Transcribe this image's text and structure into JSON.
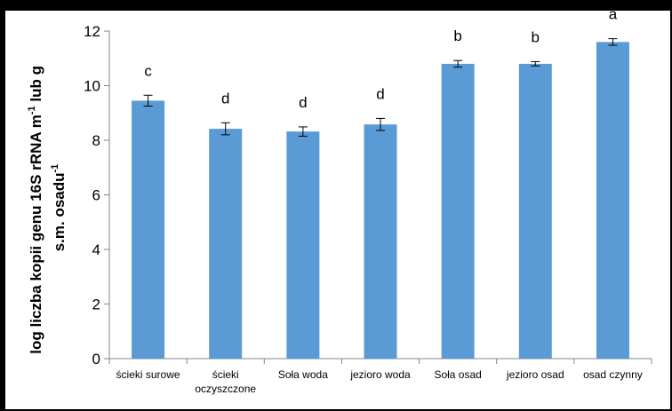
{
  "chart_data": {
    "type": "bar",
    "title": "",
    "xlabel": "",
    "ylabel": {
      "line1": {
        "before_sup1": "log liczba kopii genu 16S rRNA m",
        "sup1": "-1",
        "after_sup1": " lub g"
      },
      "line2": {
        "before_sup": "s.m. osadu",
        "sup": "-1"
      }
    },
    "ylim": [
      0,
      12
    ],
    "yticks": [
      "0",
      "2",
      "4",
      "6",
      "8",
      "10",
      "12"
    ],
    "grid": false,
    "categories": [
      [
        "ścieki surowe"
      ],
      [
        "ścieki",
        "oczyszczone"
      ],
      [
        "Soła woda"
      ],
      [
        "jezioro woda"
      ],
      [
        "Soła osad"
      ],
      [
        "jezioro osad"
      ],
      [
        "osad czynny"
      ]
    ],
    "values": [
      9.45,
      8.42,
      8.32,
      8.58,
      10.8,
      10.8,
      11.6
    ],
    "errors": [
      0.2,
      0.22,
      0.17,
      0.22,
      0.12,
      0.08,
      0.12
    ],
    "letters": [
      "c",
      "d",
      "d",
      "d",
      "b",
      "b",
      "a"
    ],
    "colors": {
      "bar": "#5b9bd5",
      "axis": "#868686",
      "text": "#000000"
    }
  }
}
